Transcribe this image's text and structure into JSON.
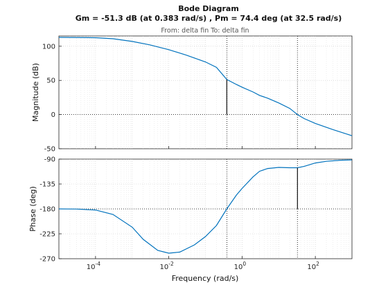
{
  "chart_data": {
    "type": "line",
    "title": "Bode Diagram",
    "subtitle": "Gm = -51.3 dB (at 0.383 rad/s) ,  Pm = 74.4 deg (at 32.5 rad/s)",
    "io_label": "From: delta fin  To: delta fin",
    "xlabel": "Frequency  (rad/s)",
    "x_scale": "log",
    "xlim": [
      1e-05,
      1000
    ],
    "x_ticks": [
      {
        "value": 0.0001,
        "base": "10",
        "exp": "-4"
      },
      {
        "value": 0.01,
        "base": "10",
        "exp": "-2"
      },
      {
        "value": 1,
        "base": "10",
        "exp": "0"
      },
      {
        "value": 100,
        "base": "10",
        "exp": "2"
      }
    ],
    "grid": true,
    "color": "#0072BD",
    "margin_color": "#000000",
    "subplots": [
      {
        "name": "magnitude",
        "ylabel": "Magnitude (dB)",
        "ylim": [
          -50,
          115
        ],
        "yticks": [
          -50,
          0,
          50,
          100
        ],
        "reference_line": 0,
        "x": [
          1e-05,
          0.0001,
          0.0003,
          0.001,
          0.003,
          0.01,
          0.03,
          0.1,
          0.2,
          0.383,
          0.7,
          1,
          2,
          3,
          5,
          10,
          20,
          32.5,
          50,
          100,
          300,
          1000
        ],
        "y": [
          113,
          112.5,
          111,
          107,
          102,
          95,
          87,
          77,
          69,
          51.3,
          44,
          40,
          33,
          28,
          24,
          17,
          9,
          0,
          -6,
          -13,
          -22,
          -31
        ],
        "margin": {
          "x": 0.383,
          "from": 51.3,
          "to": 0
        }
      },
      {
        "name": "phase",
        "ylabel": "Phase (deg)",
        "ylim": [
          -270,
          -90
        ],
        "yticks": [
          -270,
          -225,
          -180,
          -135,
          -90
        ],
        "reference_line": -180,
        "x": [
          1e-05,
          3e-05,
          0.0001,
          0.0003,
          0.001,
          0.002,
          0.005,
          0.01,
          0.02,
          0.05,
          0.1,
          0.2,
          0.383,
          0.7,
          1,
          2,
          3,
          5,
          10,
          20,
          32.5,
          50,
          100,
          200,
          500,
          1000
        ],
        "y": [
          -180,
          -180.3,
          -182,
          -190,
          -213,
          -235,
          -255,
          -260,
          -258,
          -245,
          -230,
          -210,
          -180,
          -155,
          -143,
          -122,
          -112,
          -107,
          -105,
          -105.6,
          -105.6,
          -103,
          -97,
          -94,
          -92,
          -91.5
        ],
        "margin": {
          "x": 32.5,
          "from": -180,
          "to": -105.6
        }
      }
    ]
  }
}
